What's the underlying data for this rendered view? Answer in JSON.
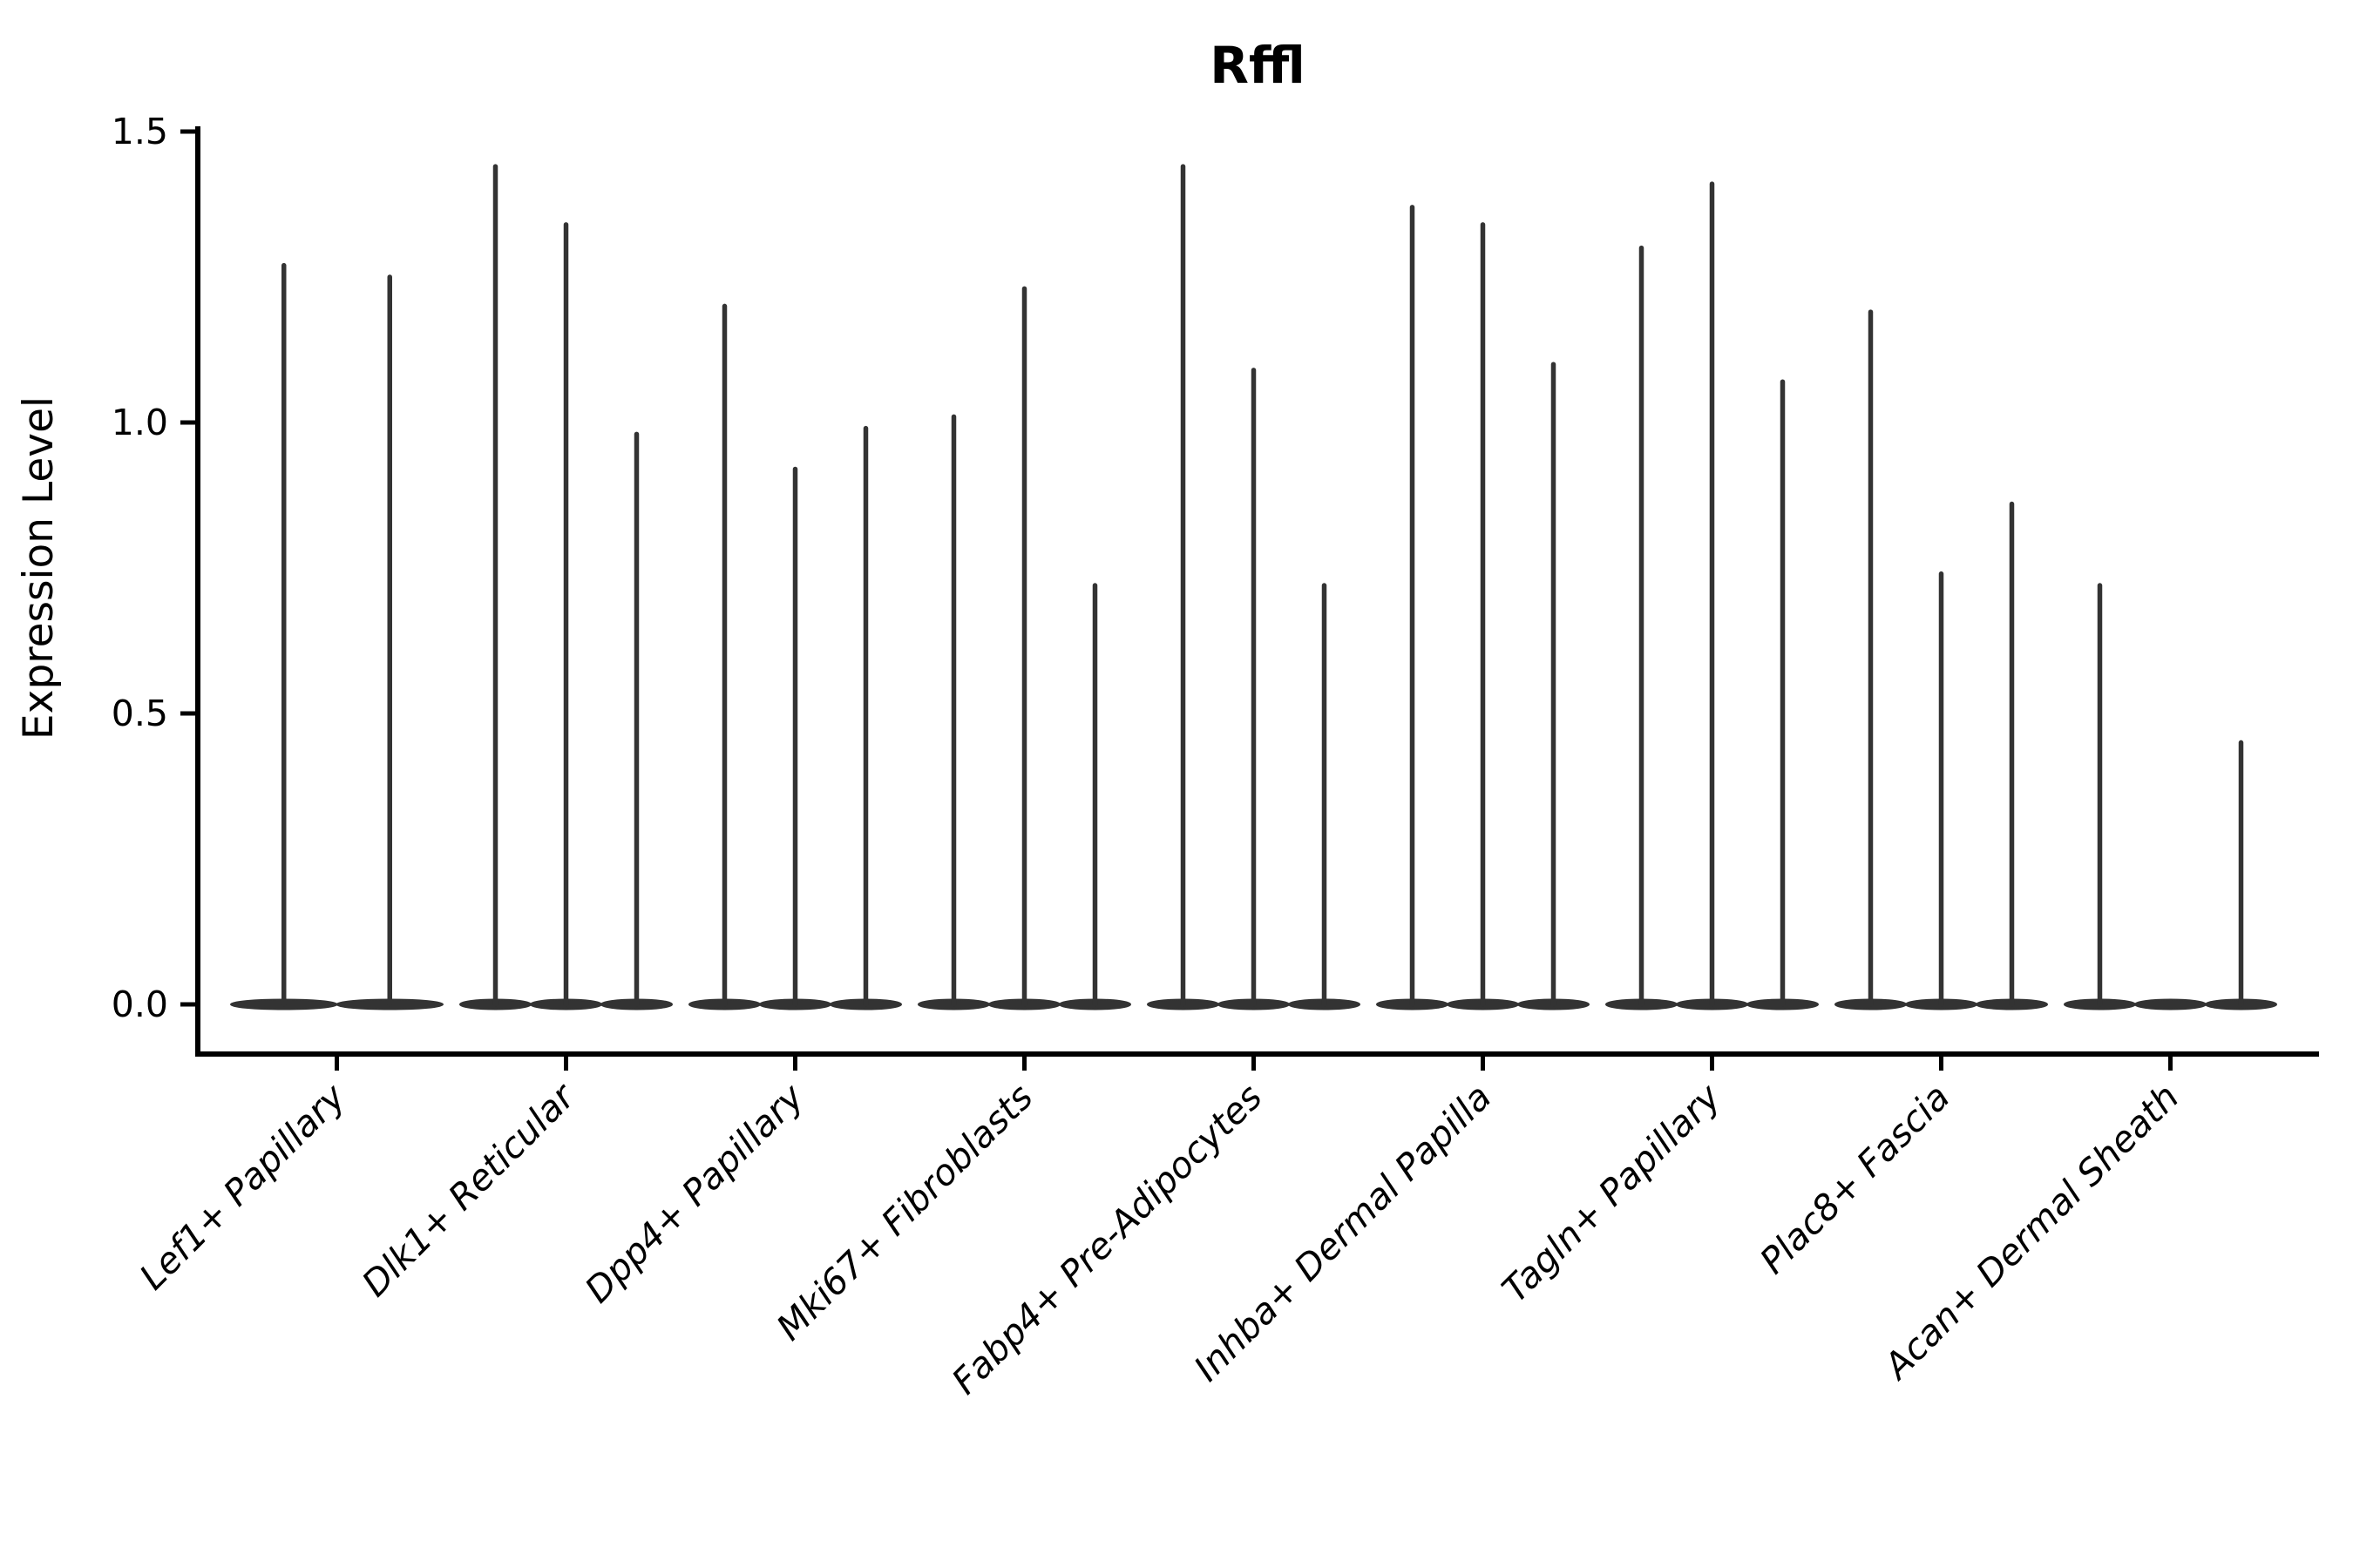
{
  "figure": {
    "background_color": "#ffffff",
    "text_color": "#000000",
    "violin_color": "#333333"
  },
  "chart_data": {
    "type": "violin",
    "title": "Rffl",
    "xlabel": "",
    "ylabel": "Expression Level",
    "ylim": [
      0,
      1.5
    ],
    "yticks": [
      0.0,
      0.5,
      1.0,
      1.5
    ],
    "ytick_labels": [
      "0.0",
      "0.5",
      "1.0",
      "1.5"
    ],
    "legend": "none",
    "grid": false,
    "description": "Violin plot of Rffl expression level per fibroblast cluster; each cluster shows 2-3 very thin violins (one per replicate) that are wide only at 0 with a narrow spike up to the maximum expression value.",
    "groups": [
      {
        "category": "Lef1+ Papillary",
        "violin_maxima": [
          1.27,
          1.25
        ]
      },
      {
        "category": "Dlk1+ Reticular",
        "violin_maxima": [
          1.44,
          1.34,
          0.98
        ]
      },
      {
        "category": "Dpp4+ Papillary",
        "violin_maxima": [
          1.2,
          0.92,
          0.99
        ]
      },
      {
        "category": "Mki67+ Fibroblasts",
        "violin_maxima": [
          1.01,
          1.23,
          0.72
        ]
      },
      {
        "category": "Fabp4+ Pre-Adipocytes",
        "violin_maxima": [
          1.44,
          1.09,
          0.72
        ]
      },
      {
        "category": "Inhba+ Dermal Papilla",
        "violin_maxima": [
          1.37,
          1.34,
          1.1
        ]
      },
      {
        "category": "Tagln+ Papillary",
        "violin_maxima": [
          1.3,
          1.41,
          1.07
        ]
      },
      {
        "category": "Plac8+ Fascia",
        "violin_maxima": [
          1.19,
          0.74,
          0.86
        ]
      },
      {
        "category": "Acan+ Dermal Sheath",
        "violin_maxima": [
          0.72,
          0.0,
          0.45
        ]
      }
    ]
  }
}
